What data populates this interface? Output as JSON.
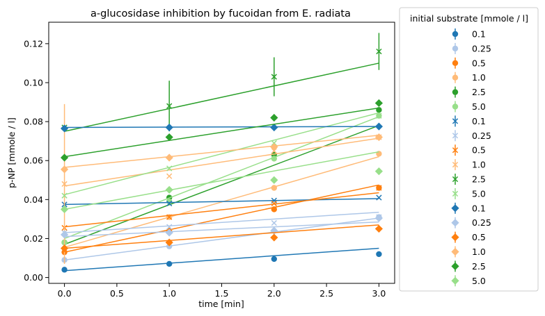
{
  "chart_data": {
    "type": "scatter",
    "title": "a-glucosidase inhibition by fucoidan from E. radiata",
    "xlabel": "time [min]",
    "ylabel": "p-NP [mmole / l]",
    "xlim": [
      -0.15,
      3.15
    ],
    "ylim": [
      -0.003,
      0.131
    ],
    "xticks": [
      0.0,
      0.5,
      1.0,
      1.5,
      2.0,
      2.5,
      3.0
    ],
    "xtick_labels": [
      "0.0",
      "0.5",
      "1.0",
      "1.5",
      "2.0",
      "2.5",
      "3.0"
    ],
    "yticks": [
      0.0,
      0.02,
      0.04,
      0.06,
      0.08,
      0.1,
      0.12
    ],
    "ytick_labels": [
      "0.00",
      "0.02",
      "0.04",
      "0.06",
      "0.08",
      "0.10",
      "0.12"
    ],
    "grid": false,
    "legend": {
      "title": "initial substrate [mmole / l]",
      "placement": "outside right"
    },
    "x": [
      0,
      1,
      2,
      3
    ],
    "series": [
      {
        "name": "0.1",
        "marker": "circle",
        "color": "#1f77b4",
        "values": [
          0.004,
          0.007,
          0.0095,
          0.012
        ],
        "fit": [
          0.0035,
          0.015
        ],
        "err": [
          0,
          0,
          0,
          0
        ]
      },
      {
        "name": "0.25",
        "marker": "circle",
        "color": "#aec7e8",
        "values": [
          0.009,
          0.016,
          0.024,
          0.031
        ],
        "fit": [
          0.009,
          0.0305
        ],
        "err": [
          0,
          0,
          0,
          0
        ]
      },
      {
        "name": "0.5",
        "marker": "circle",
        "color": "#ff7f0e",
        "values": [
          0.013,
          0.024,
          0.035,
          0.046
        ],
        "fit": [
          0.013,
          0.0475
        ],
        "err": [
          0,
          0,
          0,
          0
        ]
      },
      {
        "name": "1.0",
        "marker": "circle",
        "color": "#ffbb78",
        "values": [
          0.018,
          0.031,
          0.046,
          0.0635
        ],
        "fit": [
          0.0155,
          0.062
        ],
        "err": [
          0,
          0,
          0,
          0
        ]
      },
      {
        "name": "2.5",
        "marker": "circle",
        "color": "#2ca02c",
        "values": [
          0.018,
          0.041,
          0.063,
          0.086
        ],
        "fit": [
          0.017,
          0.078
        ],
        "err": [
          0,
          0,
          0,
          0
        ]
      },
      {
        "name": "5.0",
        "marker": "circle",
        "color": "#98df8a",
        "values": [
          0.018,
          0.039,
          0.061,
          0.083
        ],
        "fit": [
          0.02,
          0.0825
        ],
        "err": [
          0,
          0,
          0,
          0
        ]
      },
      {
        "name": "0.1",
        "marker": "x",
        "color": "#1f77b4",
        "values": [
          0.0375,
          0.038,
          0.0395,
          0.041
        ],
        "fit": [
          0.0375,
          0.0405
        ],
        "err": [
          0,
          0,
          0,
          0
        ]
      },
      {
        "name": "0.25",
        "marker": "x",
        "color": "#aec7e8",
        "values": [
          0.023,
          0.026,
          0.028,
          0.031
        ],
        "fit": [
          0.023,
          0.0335
        ],
        "err": [
          0,
          0,
          0,
          0
        ]
      },
      {
        "name": "0.5",
        "marker": "x",
        "color": "#ff7f0e",
        "values": [
          0.0255,
          0.031,
          0.038,
          0.046
        ],
        "fit": [
          0.026,
          0.0435
        ],
        "err": [
          0,
          0,
          0,
          0
        ]
      },
      {
        "name": "1.0",
        "marker": "x",
        "color": "#ffbb78",
        "values": [
          0.048,
          0.052,
          0.065,
          0.072
        ],
        "fit": [
          0.047,
          0.0715
        ],
        "err": [
          0.041,
          0,
          0,
          0
        ]
      },
      {
        "name": "2.5",
        "marker": "x",
        "color": "#2ca02c",
        "values": [
          0.077,
          0.088,
          0.103,
          0.116
        ],
        "fit": [
          0.075,
          0.11
        ],
        "err": [
          0,
          0.013,
          0.01,
          0.0095
        ]
      },
      {
        "name": "5.0",
        "marker": "x",
        "color": "#98df8a",
        "values": [
          0.042,
          0.056,
          0.069,
          0.083
        ],
        "fit": [
          0.0425,
          0.0845
        ],
        "err": [
          0,
          0,
          0,
          0
        ]
      },
      {
        "name": "0.1",
        "marker": "diamond",
        "color": "#1f77b4",
        "values": [
          0.0765,
          0.077,
          0.077,
          0.0775
        ],
        "fit": [
          0.077,
          0.0775
        ],
        "err": [
          0,
          0,
          0,
          0
        ]
      },
      {
        "name": "0.25",
        "marker": "diamond",
        "color": "#aec7e8",
        "values": [
          0.022,
          0.023,
          0.024,
          0.0305
        ],
        "fit": [
          0.021,
          0.0285
        ],
        "err": [
          0,
          0,
          0,
          0
        ]
      },
      {
        "name": "0.5",
        "marker": "diamond",
        "color": "#ff7f0e",
        "values": [
          0.015,
          0.018,
          0.0205,
          0.025
        ],
        "fit": [
          0.015,
          0.027
        ],
        "err": [
          0,
          0,
          0,
          0
        ]
      },
      {
        "name": "1.0",
        "marker": "diamond",
        "color": "#ffbb78",
        "values": [
          0.0555,
          0.0615,
          0.067,
          0.072
        ],
        "fit": [
          0.0565,
          0.073
        ],
        "err": [
          0,
          0,
          0,
          0
        ]
      },
      {
        "name": "2.5",
        "marker": "diamond",
        "color": "#2ca02c",
        "values": [
          0.0615,
          0.072,
          0.082,
          0.0895
        ],
        "fit": [
          0.062,
          0.087
        ],
        "err": [
          0,
          0,
          0,
          0
        ]
      },
      {
        "name": "5.0",
        "marker": "diamond",
        "color": "#98df8a",
        "values": [
          0.035,
          0.045,
          0.05,
          0.0545
        ],
        "fit": [
          0.035,
          0.0645
        ],
        "err": [
          0,
          0,
          0,
          0
        ]
      }
    ]
  }
}
